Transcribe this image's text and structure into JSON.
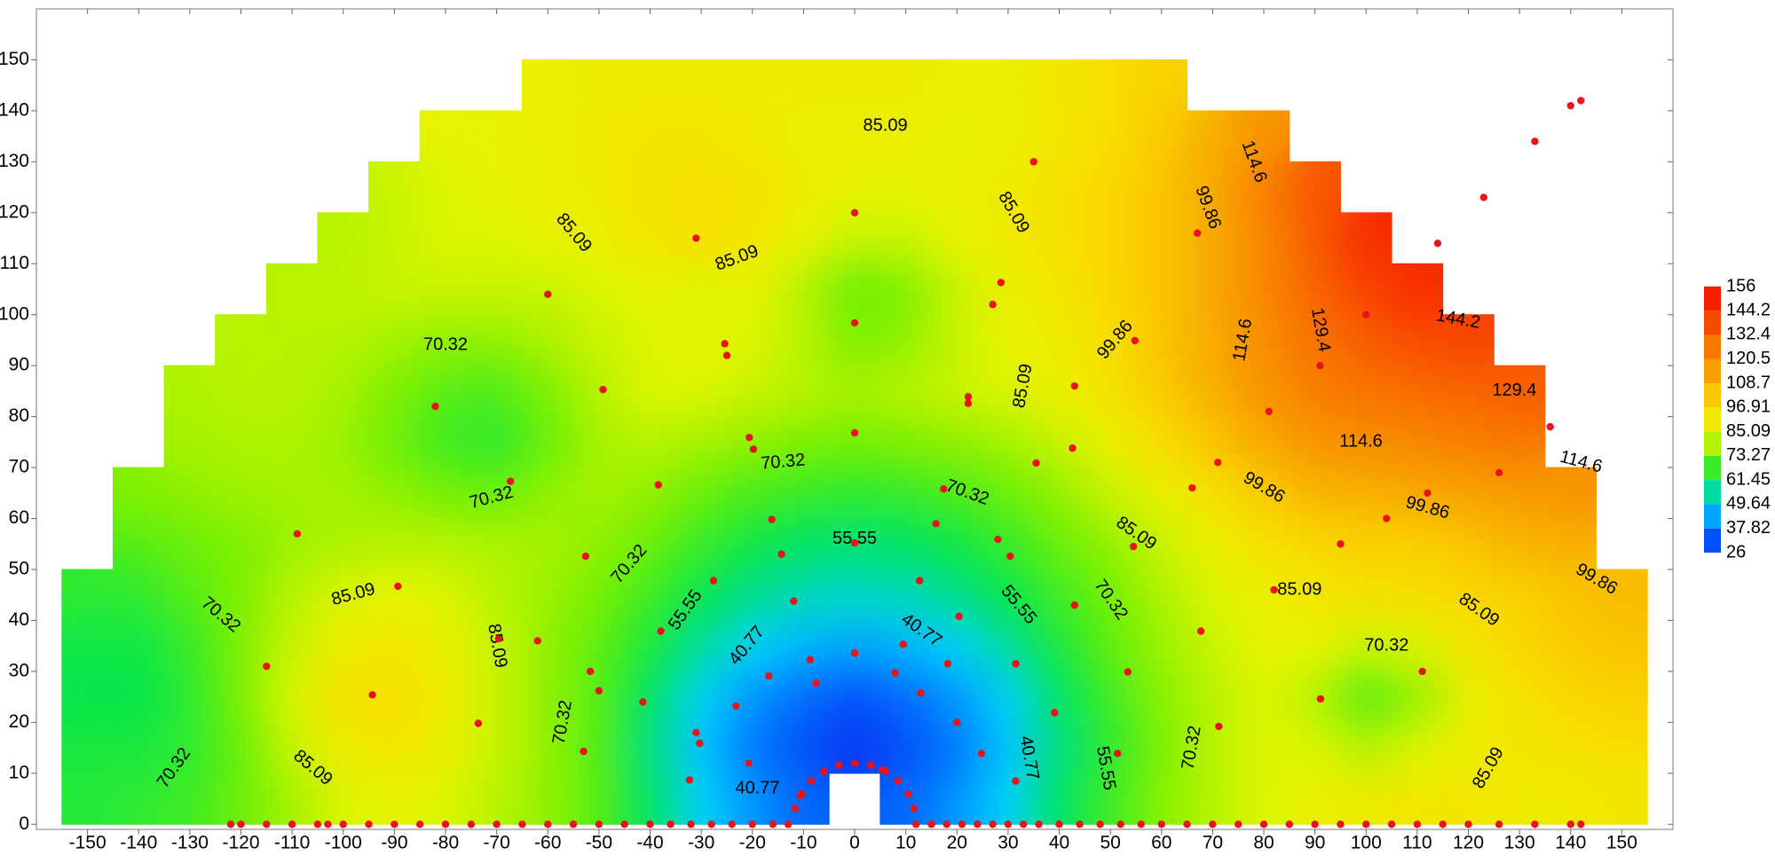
{
  "chart_data": {
    "type": "contour",
    "xlim": [
      -160,
      160
    ],
    "ylim": [
      -1,
      160
    ],
    "xticks": [
      -150,
      -140,
      -130,
      -120,
      -110,
      -100,
      -90,
      -80,
      -70,
      -60,
      -50,
      -40,
      -30,
      -20,
      -10,
      0,
      10,
      20,
      30,
      40,
      50,
      60,
      70,
      80,
      90,
      100,
      110,
      120,
      130,
      140,
      150
    ],
    "yticks": [
      0,
      10,
      20,
      30,
      40,
      50,
      60,
      70,
      80,
      90,
      100,
      110,
      120,
      130,
      140,
      150
    ],
    "colorbar": {
      "ticks": [
        26,
        37.82,
        49.64,
        61.45,
        73.27,
        85.09,
        96.91,
        108.7,
        120.5,
        132.4,
        144.2,
        156
      ],
      "colors": [
        "#0a28f0",
        "#0078ff",
        "#00d2ff",
        "#00e650",
        "#78f000",
        "#e6f500",
        "#fadc00",
        "#f8b400",
        "#f88c00",
        "#f86400",
        "#f83200",
        "#f00a00"
      ]
    },
    "grid_x": [
      -150,
      -140,
      -130,
      -120,
      -110,
      -100,
      -90,
      -80,
      -70,
      -60,
      -50,
      -40,
      -30,
      -20,
      -10,
      0,
      10,
      20,
      30,
      40,
      50,
      60,
      70,
      80,
      90,
      100,
      110,
      120,
      130,
      140,
      150
    ],
    "grid_y": [
      5,
      15,
      25,
      35,
      45,
      55,
      65,
      75,
      85,
      95,
      105,
      115,
      125,
      135,
      145
    ],
    "z": [
      [
        65,
        66,
        68,
        72,
        78,
        84,
        86,
        84,
        80,
        76,
        70,
        60,
        50,
        42,
        35,
        null,
        35,
        42,
        50,
        60,
        68,
        75,
        80,
        84,
        88,
        90,
        92,
        92,
        90,
        90,
        92
      ],
      [
        64,
        64,
        66,
        72,
        82,
        90,
        92,
        88,
        82,
        76,
        70,
        58,
        48,
        38,
        32,
        28,
        32,
        38,
        48,
        58,
        66,
        74,
        80,
        84,
        84,
        80,
        84,
        90,
        92,
        94,
        96
      ],
      [
        62,
        62,
        66,
        74,
        84,
        94,
        96,
        90,
        82,
        76,
        70,
        60,
        50,
        42,
        36,
        32,
        36,
        42,
        50,
        60,
        68,
        75,
        80,
        84,
        80,
        70,
        76,
        88,
        94,
        98,
        100
      ],
      [
        63,
        63,
        67,
        74,
        82,
        90,
        92,
        88,
        82,
        76,
        71,
        64,
        56,
        50,
        46,
        44,
        46,
        50,
        56,
        64,
        71,
        77,
        82,
        86,
        86,
        82,
        84,
        92,
        98,
        102,
        104
      ],
      [
        66,
        66,
        70,
        74,
        80,
        84,
        86,
        84,
        80,
        77,
        73,
        68,
        62,
        57,
        54,
        53,
        54,
        57,
        62,
        68,
        73,
        79,
        84,
        88,
        92,
        94,
        96,
        98,
        100,
        104,
        106
      ],
      [
        null,
        70,
        72,
        74,
        77,
        79,
        80,
        80,
        79,
        78,
        76,
        72,
        67,
        63,
        60,
        59,
        60,
        63,
        67,
        72,
        76,
        82,
        88,
        94,
        98,
        100,
        100,
        104,
        108,
        110,
        null
      ],
      [
        null,
        74,
        76,
        77,
        78,
        78,
        76,
        73,
        72,
        76,
        78,
        76,
        72,
        69,
        67,
        66,
        67,
        69,
        72,
        76,
        82,
        88,
        94,
        102,
        108,
        110,
        112,
        114,
        116,
        118,
        null
      ],
      [
        null,
        null,
        78,
        79,
        79,
        77,
        72,
        68,
        66,
        72,
        78,
        80,
        78,
        76,
        74,
        73,
        74,
        76,
        78,
        82,
        88,
        96,
        104,
        112,
        118,
        120,
        122,
        124,
        126,
        null,
        null
      ],
      [
        null,
        null,
        79,
        80,
        80,
        78,
        74,
        70,
        69,
        74,
        80,
        84,
        84,
        82,
        80,
        78,
        80,
        82,
        84,
        88,
        94,
        102,
        110,
        118,
        124,
        128,
        130,
        132,
        134,
        null,
        null
      ],
      [
        null,
        null,
        null,
        80,
        80,
        80,
        78,
        76,
        76,
        79,
        82,
        84,
        86,
        84,
        80,
        74,
        76,
        82,
        86,
        90,
        96,
        104,
        112,
        120,
        128,
        134,
        138,
        140,
        null,
        null,
        null
      ],
      [
        null,
        null,
        null,
        null,
        80,
        81,
        82,
        82,
        82,
        82,
        84,
        86,
        84,
        86,
        80,
        72,
        74,
        82,
        88,
        92,
        98,
        104,
        112,
        122,
        132,
        140,
        146,
        null,
        null,
        null,
        null
      ],
      [
        null,
        null,
        null,
        null,
        null,
        80,
        82,
        84,
        84,
        86,
        88,
        92,
        96,
        92,
        86,
        82,
        82,
        86,
        90,
        94,
        98,
        104,
        112,
        122,
        134,
        146,
        null,
        null,
        null,
        null,
        null
      ],
      [
        null,
        null,
        null,
        null,
        null,
        null,
        82,
        84,
        86,
        88,
        90,
        94,
        96,
        94,
        90,
        86,
        86,
        88,
        90,
        94,
        98,
        104,
        112,
        124,
        136,
        null,
        null,
        null,
        null,
        null,
        null
      ],
      [
        null,
        null,
        null,
        null,
        null,
        null,
        null,
        86,
        86,
        88,
        90,
        92,
        92,
        90,
        88,
        88,
        88,
        86,
        88,
        92,
        96,
        102,
        110,
        118,
        null,
        null,
        null,
        null,
        null,
        null,
        null
      ],
      [
        null,
        null,
        null,
        null,
        null,
        null,
        null,
        null,
        null,
        88,
        90,
        90,
        90,
        90,
        90,
        90,
        90,
        88,
        88,
        92,
        96,
        100,
        null,
        null,
        null,
        null,
        null,
        null,
        null,
        null,
        null
      ]
    ],
    "contour_labels": [
      85.09,
      85.09,
      85.09,
      85.09,
      99.86,
      114.6,
      70.32,
      70.32,
      70.32,
      55.55,
      40.77,
      70.32,
      55.55,
      70.32,
      40.77,
      55.55,
      70.32,
      85.09,
      99.86,
      85.09,
      114.6,
      129.4,
      144.2,
      129.4,
      114.6,
      114.6,
      99.86,
      99.86,
      85.09,
      85.09,
      99.86,
      70.32,
      85.09,
      70.32,
      55.55,
      40.77,
      40.77,
      70.32,
      85.09,
      85.09,
      70.32,
      70.32,
      85.09
    ],
    "points": {
      "color": "#e8141c",
      "x": [
        -11.6,
        -32.3,
        -53,
        -73.6,
        -94.3,
        -115,
        -10.6,
        -30.3,
        -50,
        -69.6,
        -89.3,
        -109,
        -10.4,
        -20.7,
        -31,
        -41.4,
        -51.7,
        -62,
        -8.5,
        -23.2,
        -37.9,
        -52.6,
        -67.3,
        -82,
        -6,
        -16.8,
        -27.6,
        -38.4,
        -49.2,
        -60,
        -3.1,
        -7.5,
        -11.9,
        -16.2,
        -20.6,
        -25,
        -8.7,
        -14.3,
        -19.8,
        -25.4,
        -31,
        0,
        0,
        0,
        0,
        0,
        0,
        3.1,
        7.9,
        12.7,
        17.4,
        22.2,
        27,
        9.5,
        15.9,
        22.2,
        28.6,
        35,
        5.4,
        12.9,
        20.4,
        28,
        35.5,
        43,
        6,
        18.2,
        30.4,
        42.6,
        54.8,
        67,
        8.5,
        20,
        31.5,
        43,
        54.5,
        66,
        10.5,
        24.8,
        39.1,
        53.4,
        67.7,
        82,
        11.6,
        31.5,
        51.4,
        71.2,
        91.1,
        111,
        71,
        81,
        91,
        100,
        114,
        123,
        133,
        140,
        142,
        95,
        104,
        112,
        126,
        136,
        -122,
        -120,
        -115,
        -110,
        -105,
        -103,
        -100,
        -95,
        -90,
        -85,
        -80,
        -75,
        -70,
        -65,
        -60,
        -55,
        -50,
        -45,
        -40,
        -36,
        -32,
        -28,
        -24,
        -20,
        -16,
        -13,
        12,
        15,
        18,
        21,
        24,
        27,
        30,
        33,
        36,
        40,
        44,
        48,
        52,
        56,
        60,
        65,
        70,
        75,
        80,
        85,
        90,
        95,
        100,
        105,
        110,
        115,
        120,
        126,
        133,
        140,
        142
      ],
      "y": [
        3.1,
        8.7,
        14.3,
        19.8,
        25.4,
        31,
        5.6,
        15.9,
        26.2,
        36.4,
        46.7,
        57,
        6,
        12,
        18,
        24,
        30,
        36,
        8.5,
        23.2,
        37.9,
        52.6,
        67.3,
        82,
        10.4,
        29.1,
        47.8,
        66.6,
        85.3,
        104,
        11.6,
        27.7,
        43.8,
        59.8,
        75.9,
        92,
        32.3,
        53,
        73.6,
        94.3,
        115,
        12,
        33.6,
        55.2,
        76.8,
        98.4,
        120,
        11.6,
        29.7,
        47.8,
        65.8,
        83.9,
        102,
        35.3,
        59,
        82.6,
        106.3,
        130,
        10.7,
        25.8,
        40.8,
        55.9,
        70.9,
        86,
        10.4,
        31.5,
        52.6,
        73.8,
        94.9,
        116,
        8.5,
        20,
        31.5,
        43,
        54.5,
        66,
        5.9,
        13.9,
        21.9,
        29.9,
        37.9,
        46,
        3.1,
        8.5,
        13.9,
        19.2,
        24.6,
        30,
        71,
        81,
        90,
        100,
        114,
        123,
        134,
        141,
        142,
        55,
        60,
        65,
        69,
        78,
        0,
        0,
        0,
        0,
        0,
        0,
        0,
        0,
        0,
        0,
        0,
        0,
        0,
        0,
        0,
        0,
        0,
        0,
        0,
        0,
        0,
        0,
        0,
        0,
        0,
        0,
        0,
        0,
        0,
        0,
        0,
        0,
        0,
        0,
        0,
        0,
        0,
        0,
        0,
        0,
        0,
        0,
        0,
        0,
        0,
        0,
        0,
        0,
        0,
        0,
        0,
        0,
        0,
        0,
        0,
        0,
        0
      ]
    }
  }
}
